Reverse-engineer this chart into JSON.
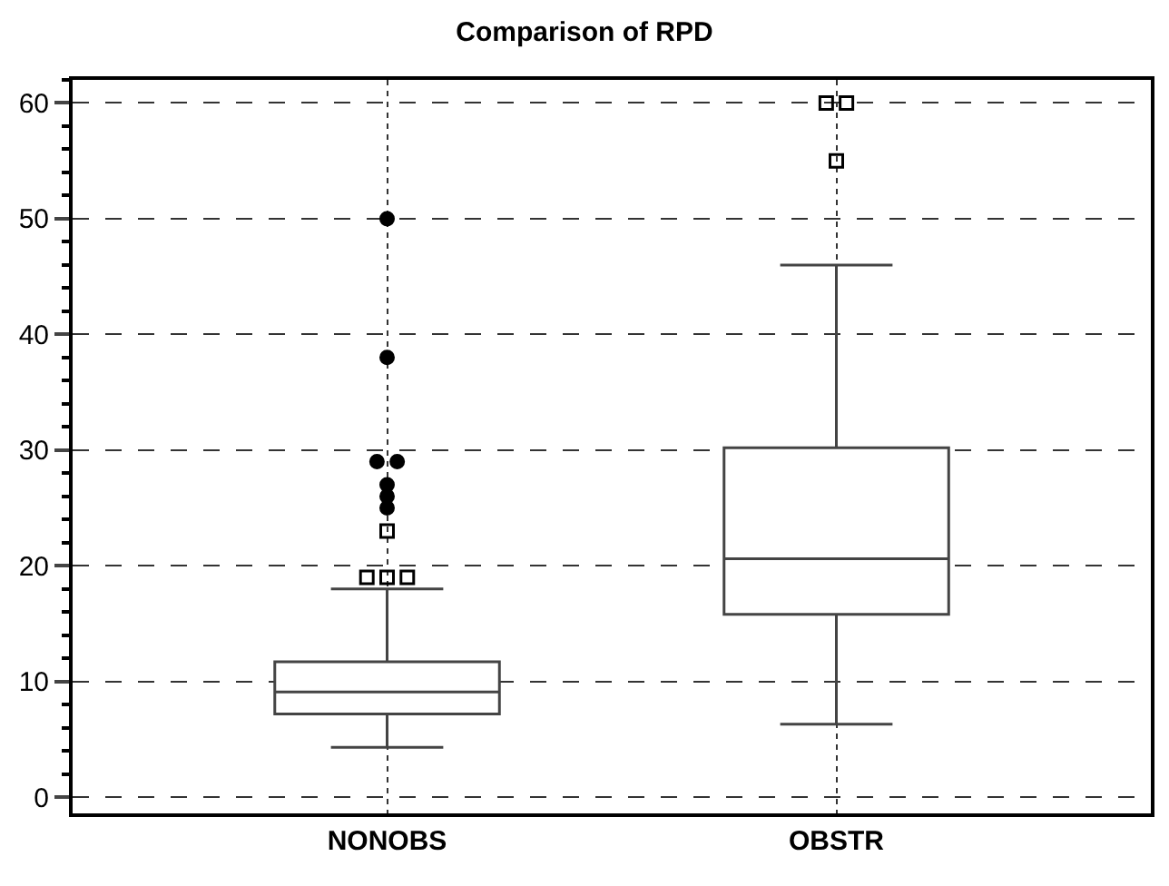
{
  "chart_data": {
    "type": "box",
    "title": "Comparison of RPD",
    "categories": [
      "NONOBS",
      "OBSTR"
    ],
    "boxes": [
      {
        "low": 4.3,
        "q1": 7.2,
        "median": 9.1,
        "q3": 11.7,
        "high": 18.0
      },
      {
        "low": 6.3,
        "q1": 15.8,
        "median": 20.6,
        "q3": 30.2,
        "high": 46.0
      }
    ],
    "series": [
      {
        "type": "scatter",
        "marker": "square",
        "color": "#000000",
        "x": [
          "NONOBS",
          "NONOBS",
          "NONOBS",
          "NONOBS",
          "OBSTR",
          "OBSTR",
          "OBSTR"
        ],
        "values": [
          19,
          19,
          19,
          23,
          60,
          60,
          55
        ]
      },
      {
        "type": "scatter",
        "marker": "circle",
        "color": "#000000",
        "x": [
          "NONOBS",
          "NONOBS",
          "NONOBS",
          "NONOBS",
          "NONOBS",
          "NONOBS",
          "NONOBS"
        ],
        "values": [
          25,
          26,
          27,
          29,
          29,
          38,
          50
        ]
      }
    ],
    "ylim": [
      -1.4,
      62
    ],
    "yticks": [
      0,
      10,
      20,
      30,
      40,
      50,
      60
    ],
    "grid": true
  }
}
